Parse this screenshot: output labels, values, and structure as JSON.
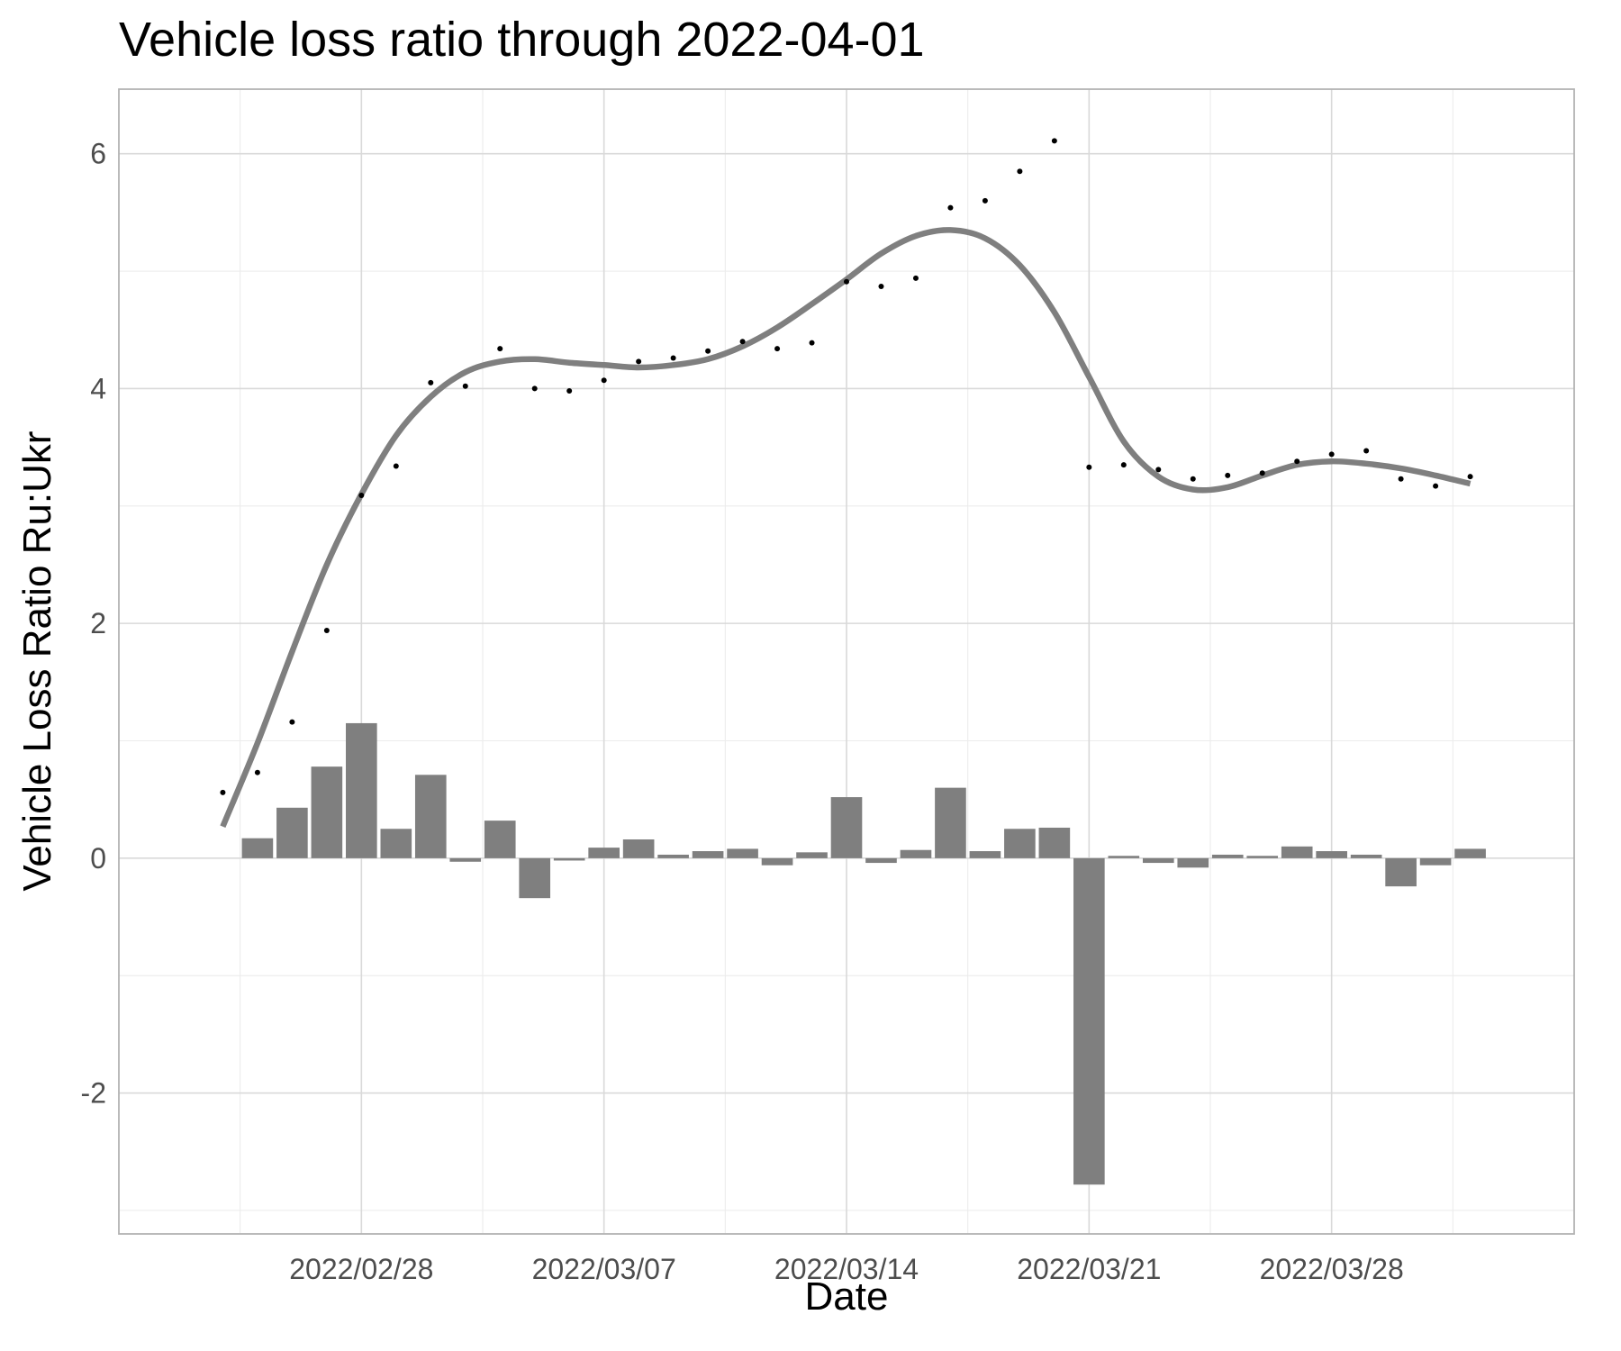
{
  "chart_data": {
    "type": "bar",
    "title": "Vehicle loss ratio through 2022-04-01",
    "xlabel": "Date",
    "ylabel": "Vehicle Loss Ratio Ru:Ukr",
    "x_ticks": [
      "2022/02/28",
      "2022/03/07",
      "2022/03/14",
      "2022/03/21",
      "2022/03/28"
    ],
    "y_ticks": [
      "-2",
      "0",
      "2",
      "4",
      "6"
    ],
    "ylim": [
      -3.2,
      6.55
    ],
    "xlim": [
      "2022-02-21",
      "2022-04-04"
    ],
    "grid": true,
    "legend": "none",
    "colors": {
      "points": "#000000",
      "bars": "#7f7f7f",
      "smooth": "#7f7f7f",
      "grid": "#d9d9d9",
      "panel_border": "#b3b3b3"
    },
    "series": [
      {
        "type": "scatter",
        "x": [
          "2022-02-24",
          "2022-02-25",
          "2022-02-26",
          "2022-02-27",
          "2022-02-28",
          "2022-03-01",
          "2022-03-02",
          "2022-03-03",
          "2022-03-04",
          "2022-03-05",
          "2022-03-06",
          "2022-03-07",
          "2022-03-08",
          "2022-03-09",
          "2022-03-10",
          "2022-03-11",
          "2022-03-12",
          "2022-03-13",
          "2022-03-14",
          "2022-03-15",
          "2022-03-16",
          "2022-03-17",
          "2022-03-18",
          "2022-03-19",
          "2022-03-20",
          "2022-03-21",
          "2022-03-22",
          "2022-03-23",
          "2022-03-24",
          "2022-03-25",
          "2022-03-26",
          "2022-03-27",
          "2022-03-28",
          "2022-03-29",
          "2022-03-30",
          "2022-03-31",
          "2022-04-01"
        ],
        "values": [
          0.56,
          0.73,
          1.16,
          1.94,
          3.09,
          3.34,
          4.05,
          4.02,
          4.34,
          4.0,
          3.98,
          4.07,
          4.23,
          4.26,
          4.32,
          4.4,
          4.34,
          4.39,
          4.91,
          4.87,
          4.94,
          5.54,
          5.6,
          5.85,
          6.11,
          3.33,
          3.35,
          3.31,
          3.23,
          3.26,
          3.28,
          3.38,
          3.44,
          3.47,
          3.23,
          3.17,
          3.25
        ]
      },
      {
        "type": "bar",
        "x": [
          "2022-02-25",
          "2022-02-26",
          "2022-02-27",
          "2022-02-28",
          "2022-03-01",
          "2022-03-02",
          "2022-03-03",
          "2022-03-04",
          "2022-03-05",
          "2022-03-06",
          "2022-03-07",
          "2022-03-08",
          "2022-03-09",
          "2022-03-10",
          "2022-03-11",
          "2022-03-12",
          "2022-03-13",
          "2022-03-14",
          "2022-03-15",
          "2022-03-16",
          "2022-03-17",
          "2022-03-18",
          "2022-03-19",
          "2022-03-20",
          "2022-03-21",
          "2022-03-22",
          "2022-03-23",
          "2022-03-24",
          "2022-03-25",
          "2022-03-26",
          "2022-03-27",
          "2022-03-28",
          "2022-03-29",
          "2022-03-30",
          "2022-03-31",
          "2022-04-01"
        ],
        "values": [
          0.17,
          0.43,
          0.78,
          1.15,
          0.25,
          0.71,
          -0.03,
          0.32,
          -0.34,
          -0.02,
          0.09,
          0.16,
          0.03,
          0.06,
          0.08,
          -0.06,
          0.05,
          0.52,
          -0.04,
          0.07,
          0.6,
          0.06,
          0.25,
          0.26,
          -2.78,
          0.02,
          -0.04,
          -0.08,
          0.03,
          0.02,
          0.1,
          0.06,
          0.03,
          -0.24,
          -0.06,
          0.08
        ]
      },
      {
        "type": "line",
        "x": [
          "2022-02-24",
          "2022-02-25",
          "2022-02-26",
          "2022-02-27",
          "2022-02-28",
          "2022-03-01",
          "2022-03-02",
          "2022-03-03",
          "2022-03-04",
          "2022-03-05",
          "2022-03-06",
          "2022-03-07",
          "2022-03-08",
          "2022-03-09",
          "2022-03-10",
          "2022-03-11",
          "2022-03-12",
          "2022-03-13",
          "2022-03-14",
          "2022-03-15",
          "2022-03-16",
          "2022-03-17",
          "2022-03-18",
          "2022-03-19",
          "2022-03-20",
          "2022-03-21",
          "2022-03-22",
          "2022-03-23",
          "2022-03-24",
          "2022-03-25",
          "2022-03-26",
          "2022-03-27",
          "2022-03-28",
          "2022-03-29",
          "2022-03-30",
          "2022-03-31",
          "2022-04-01"
        ],
        "values": [
          0.27,
          0.98,
          1.76,
          2.5,
          3.1,
          3.6,
          3.93,
          4.14,
          4.23,
          4.25,
          4.22,
          4.2,
          4.18,
          4.2,
          4.25,
          4.36,
          4.52,
          4.72,
          4.93,
          5.15,
          5.3,
          5.35,
          5.28,
          5.05,
          4.65,
          4.1,
          3.55,
          3.25,
          3.14,
          3.16,
          3.26,
          3.35,
          3.38,
          3.36,
          3.32,
          3.26,
          3.19
        ]
      }
    ]
  }
}
